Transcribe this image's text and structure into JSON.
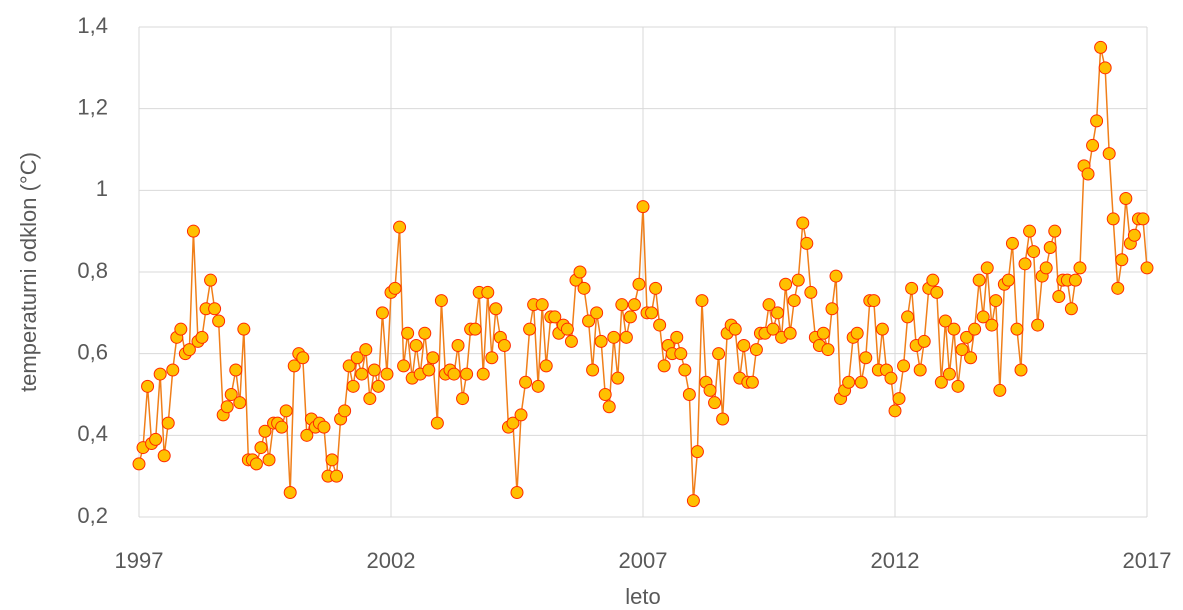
{
  "chart_data": {
    "type": "line",
    "xlabel": "leto",
    "ylabel": "temperaturni odklon (°C)",
    "xlim": [
      1997,
      2017
    ],
    "xticks": [
      1997,
      2002,
      2007,
      2012,
      2017
    ],
    "ylim": [
      0.2,
      1.4
    ],
    "yticks": [
      {
        "value": 0.2,
        "label": "0,2"
      },
      {
        "value": 0.4,
        "label": "0,4"
      },
      {
        "value": 0.6,
        "label": "0,6"
      },
      {
        "value": 0.8,
        "label": "0,8"
      },
      1,
      {
        "value": 1.2,
        "label": "1,2"
      },
      {
        "value": 1.4,
        "label": "1,4"
      }
    ],
    "grid": true,
    "series": [
      {
        "color": "#f07f1a",
        "marker_fill": "#ffc000",
        "marker_edge": "#ff2a00",
        "x": [
          1997,
          1997.08,
          1997.17,
          1997.25,
          1997.33,
          1997.42,
          1997.5,
          1997.58,
          1997.67,
          1997.75,
          1997.83,
          1997.92,
          1998,
          1998.08,
          1998.17,
          1998.25,
          1998.33,
          1998.42,
          1998.5,
          1998.58,
          1998.67,
          1998.75,
          1998.83,
          1998.92,
          1999,
          1999.08,
          1999.17,
          1999.25,
          1999.33,
          1999.42,
          1999.5,
          1999.58,
          1999.67,
          1999.75,
          1999.83,
          1999.92,
          2000,
          2000.08,
          2000.17,
          2000.25,
          2000.33,
          2000.42,
          2000.5,
          2000.58,
          2000.67,
          2000.75,
          2000.83,
          2000.92,
          2001,
          2001.08,
          2001.17,
          2001.25,
          2001.33,
          2001.42,
          2001.5,
          2001.58,
          2001.67,
          2001.75,
          2001.83,
          2001.92,
          2002,
          2002.08,
          2002.17,
          2002.25,
          2002.33,
          2002.42,
          2002.5,
          2002.58,
          2002.67,
          2002.75,
          2002.83,
          2002.92,
          2003,
          2003.08,
          2003.17,
          2003.25,
          2003.33,
          2003.42,
          2003.5,
          2003.58,
          2003.67,
          2003.75,
          2003.83,
          2003.92,
          2004,
          2004.08,
          2004.17,
          2004.25,
          2004.33,
          2004.42,
          2004.5,
          2004.58,
          2004.67,
          2004.75,
          2004.83,
          2004.92,
          2005,
          2005.08,
          2005.17,
          2005.25,
          2005.33,
          2005.42,
          2005.5,
          2005.58,
          2005.67,
          2005.75,
          2005.83,
          2005.92,
          2006,
          2006.08,
          2006.17,
          2006.25,
          2006.33,
          2006.42,
          2006.5,
          2006.58,
          2006.67,
          2006.75,
          2006.83,
          2006.92,
          2007,
          2007.08,
          2007.17,
          2007.25,
          2007.33,
          2007.42,
          2007.5,
          2007.58,
          2007.67,
          2007.75,
          2007.83,
          2007.92,
          2008,
          2008.08,
          2008.17,
          2008.25,
          2008.33,
          2008.42,
          2008.5,
          2008.58,
          2008.67,
          2008.75,
          2008.83,
          2008.92,
          2009,
          2009.08,
          2009.17,
          2009.25,
          2009.33,
          2009.42,
          2009.5,
          2009.58,
          2009.67,
          2009.75,
          2009.83,
          2009.92,
          2010,
          2010.08,
          2010.17,
          2010.25,
          2010.33,
          2010.42,
          2010.5,
          2010.58,
          2010.67,
          2010.75,
          2010.83,
          2010.92,
          2011,
          2011.08,
          2011.17,
          2011.25,
          2011.33,
          2011.42,
          2011.5,
          2011.58,
          2011.67,
          2011.75,
          2011.83,
          2011.92,
          2012,
          2012.08,
          2012.17,
          2012.25,
          2012.33,
          2012.42,
          2012.5,
          2012.58,
          2012.67,
          2012.75,
          2012.83,
          2012.92,
          2013,
          2013.08,
          2013.17,
          2013.25,
          2013.33,
          2013.42,
          2013.5,
          2013.58,
          2013.67,
          2013.75,
          2013.83,
          2013.92,
          2014,
          2014.08,
          2014.17,
          2014.25,
          2014.33,
          2014.42,
          2014.5,
          2014.58,
          2014.67,
          2014.75,
          2014.83,
          2014.92,
          2015,
          2015.08,
          2015.17,
          2015.25,
          2015.33,
          2015.42,
          2015.5,
          2015.58,
          2015.67,
          2015.75,
          2015.83,
          2015.92,
          2016,
          2016.08,
          2016.17,
          2016.25,
          2016.33,
          2016.42,
          2016.5,
          2016.58,
          2016.67,
          2016.75,
          2016.83,
          2016.92,
          2017
        ],
        "values": [
          0.33,
          0.37,
          0.52,
          0.38,
          0.39,
          0.55,
          0.35,
          0.43,
          0.56,
          0.64,
          0.66,
          0.6,
          0.61,
          0.9,
          0.63,
          0.64,
          0.71,
          0.78,
          0.71,
          0.68,
          0.45,
          0.47,
          0.5,
          0.56,
          0.48,
          0.66,
          0.34,
          0.34,
          0.33,
          0.37,
          0.41,
          0.34,
          0.43,
          0.43,
          0.42,
          0.46,
          0.26,
          0.57,
          0.6,
          0.59,
          0.4,
          0.44,
          0.42,
          0.43,
          0.42,
          0.3,
          0.34,
          0.3,
          0.44,
          0.46,
          0.57,
          0.52,
          0.59,
          0.55,
          0.61,
          0.49,
          0.56,
          0.52,
          0.7,
          0.55,
          0.75,
          0.76,
          0.91,
          0.57,
          0.65,
          0.54,
          0.62,
          0.55,
          0.65,
          0.56,
          0.59,
          0.43,
          0.73,
          0.55,
          0.56,
          0.55,
          0.62,
          0.49,
          0.55,
          0.66,
          0.66,
          0.75,
          0.55,
          0.75,
          0.59,
          0.71,
          0.64,
          0.62,
          0.42,
          0.43,
          0.26,
          0.45,
          0.53,
          0.66,
          0.72,
          0.52,
          0.72,
          0.57,
          0.69,
          0.69,
          0.65,
          0.67,
          0.66,
          0.63,
          0.78,
          0.8,
          0.76,
          0.68,
          0.56,
          0.7,
          0.63,
          0.5,
          0.47,
          0.64,
          0.54,
          0.72,
          0.64,
          0.69,
          0.72,
          0.77,
          0.96,
          0.7,
          0.7,
          0.76,
          0.67,
          0.57,
          0.62,
          0.6,
          0.64,
          0.6,
          0.56,
          0.5,
          0.24,
          0.36,
          0.73,
          0.53,
          0.51,
          0.48,
          0.6,
          0.44,
          0.65,
          0.67,
          0.66,
          0.54,
          0.62,
          0.53,
          0.53,
          0.61,
          0.65,
          0.65,
          0.72,
          0.66,
          0.7,
          0.64,
          0.77,
          0.65,
          0.73,
          0.78,
          0.92,
          0.87,
          0.75,
          0.64,
          0.62,
          0.65,
          0.61,
          0.71,
          0.79,
          0.49,
          0.51,
          0.53,
          0.64,
          0.65,
          0.53,
          0.59,
          0.73,
          0.73,
          0.56,
          0.66,
          0.56,
          0.54,
          0.46,
          0.49,
          0.57,
          0.69,
          0.76,
          0.62,
          0.56,
          0.63,
          0.76,
          0.78,
          0.75,
          0.53,
          0.68,
          0.55,
          0.66,
          0.52,
          0.61,
          0.64,
          0.59,
          0.66,
          0.78,
          0.69,
          0.81,
          0.67,
          0.73,
          0.51,
          0.77,
          0.78,
          0.87,
          0.66,
          0.56,
          0.82,
          0.9,
          0.85,
          0.67,
          0.79,
          0.81,
          0.86,
          0.9,
          0.74,
          0.78,
          0.78,
          0.71,
          0.78,
          0.81,
          1.06,
          1.04,
          1.11,
          1.17,
          1.35,
          1.3,
          1.09,
          0.93,
          0.76,
          0.83,
          0.98,
          0.87,
          0.89,
          0.93,
          0.93,
          0.81
        ]
      }
    ]
  }
}
